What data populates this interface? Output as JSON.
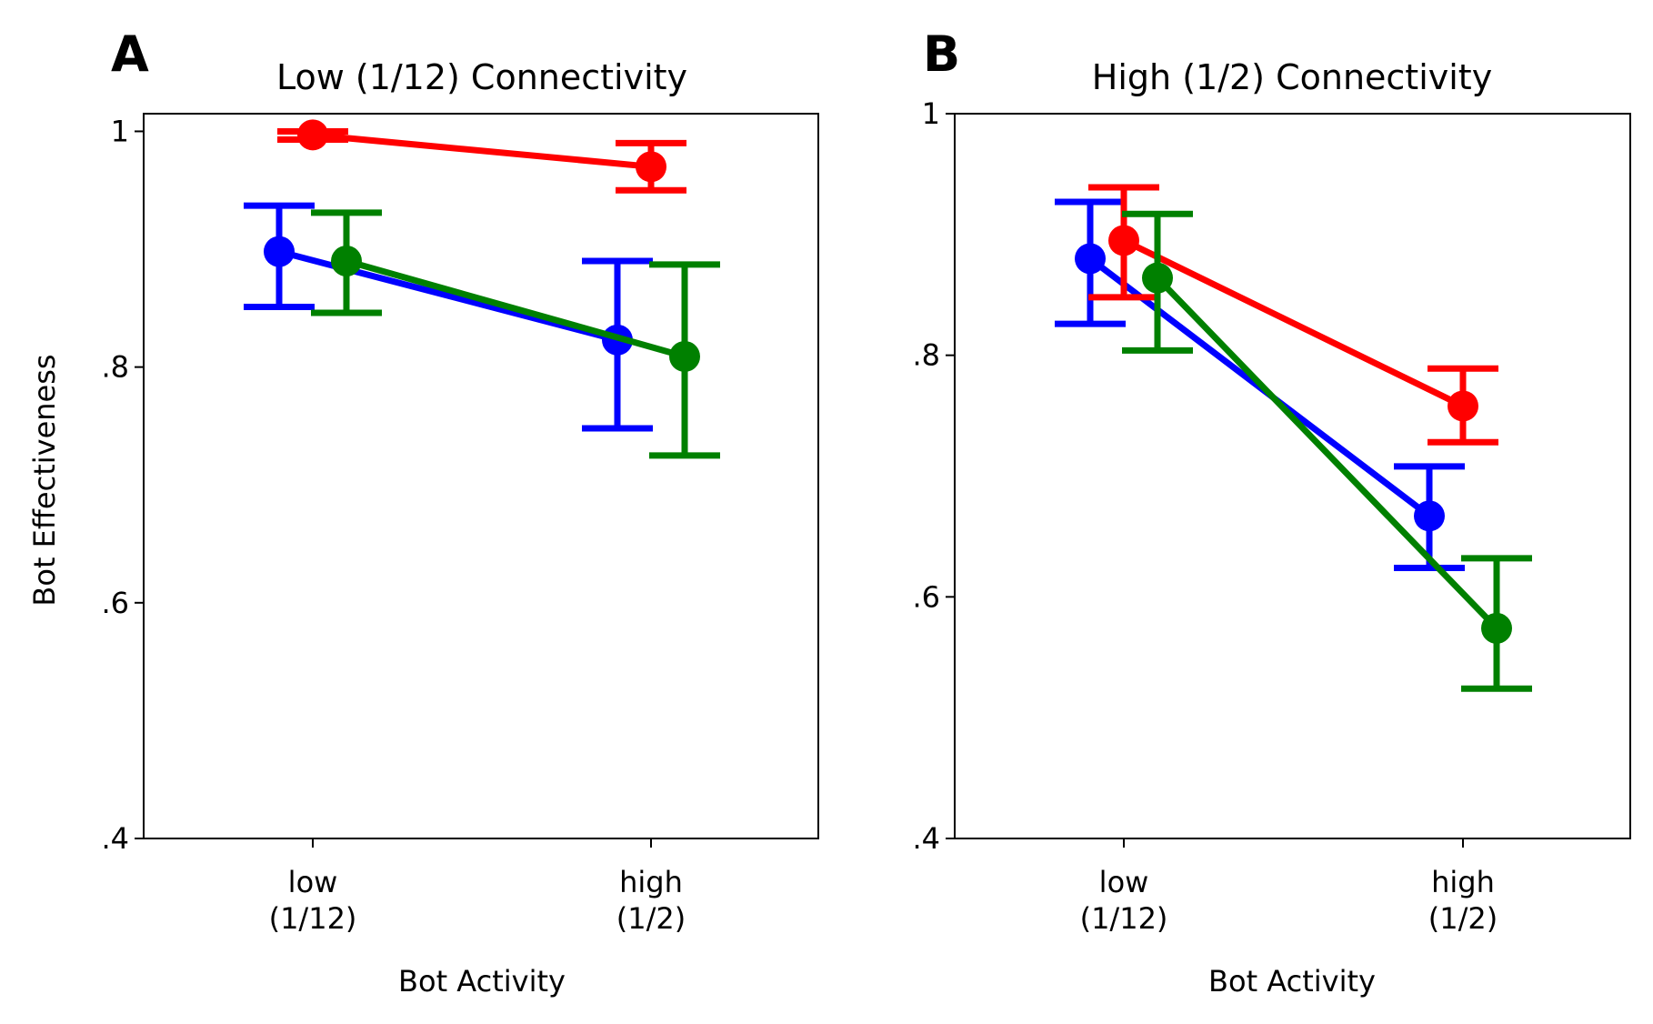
{
  "chart_data": [
    {
      "type": "line",
      "panel_label": "A",
      "title": "Low (1/12) Connectivity",
      "xlabel": "Bot Activity",
      "ylabel": "Bot Effectiveness",
      "categories": [
        [
          "low",
          "(1/12)"
        ],
        [
          "high",
          "(1/2)"
        ]
      ],
      "ylim": [
        0.4,
        1.015
      ],
      "yticks": [
        {
          "value": 0.4,
          "label": ".4"
        },
        {
          "value": 0.6,
          "label": ".6"
        },
        {
          "value": 0.8,
          "label": ".8"
        },
        {
          "value": 1.0,
          "label": "1"
        }
      ],
      "grid": false,
      "series": [
        {
          "color": "#0000ff",
          "offset": -0.1,
          "values": [
            0.898,
            0.823
          ],
          "err_low": [
            0.851,
            0.748
          ],
          "err_high": [
            0.937,
            0.89
          ]
        },
        {
          "color": "#ff0000",
          "offset": 0.0,
          "values": [
            0.997,
            0.97
          ],
          "err_low": [
            0.993,
            0.95
          ],
          "err_high": [
            1.0,
            0.99
          ]
        },
        {
          "color": "#008000",
          "offset": 0.1,
          "values": [
            0.89,
            0.809
          ],
          "err_low": [
            0.846,
            0.725
          ],
          "err_high": [
            0.931,
            0.887
          ]
        }
      ]
    },
    {
      "type": "line",
      "panel_label": "B",
      "title": "High (1/2) Connectivity",
      "xlabel": "Bot Activity",
      "ylabel": "",
      "categories": [
        [
          "low",
          "(1/12)"
        ],
        [
          "high",
          "(1/2)"
        ]
      ],
      "ylim": [
        0.4,
        1.0
      ],
      "yticks": [
        {
          "value": 0.4,
          "label": ".4"
        },
        {
          "value": 0.6,
          "label": ".6"
        },
        {
          "value": 0.8,
          "label": ".8"
        },
        {
          "value": 1.0,
          "label": "1"
        }
      ],
      "grid": false,
      "series": [
        {
          "color": "#0000ff",
          "offset": -0.1,
          "values": [
            0.88,
            0.667
          ],
          "err_low": [
            0.826,
            0.624
          ],
          "err_high": [
            0.927,
            0.708
          ]
        },
        {
          "color": "#ff0000",
          "offset": 0.0,
          "values": [
            0.895,
            0.758
          ],
          "err_low": [
            0.848,
            0.728
          ],
          "err_high": [
            0.939,
            0.789
          ]
        },
        {
          "color": "#008000",
          "offset": 0.1,
          "values": [
            0.864,
            0.574
          ],
          "err_low": [
            0.804,
            0.524
          ],
          "err_high": [
            0.917,
            0.632
          ]
        }
      ]
    }
  ]
}
